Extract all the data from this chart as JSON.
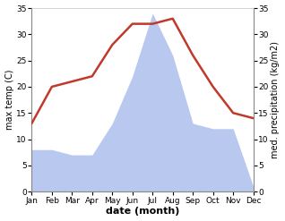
{
  "months": [
    "Jan",
    "Feb",
    "Mar",
    "Apr",
    "May",
    "Jun",
    "Jul",
    "Aug",
    "Sep",
    "Oct",
    "Nov",
    "Dec"
  ],
  "temperature": [
    13,
    20,
    21,
    22,
    28,
    32,
    32,
    33,
    26,
    20,
    15,
    14
  ],
  "precipitation": [
    8,
    8,
    7,
    7,
    13,
    22,
    34,
    26,
    13,
    12,
    12,
    1
  ],
  "temp_color": "#c0392b",
  "precip_color": "#b8c8ee",
  "ylim_left": [
    0,
    35
  ],
  "ylim_right": [
    0,
    35
  ],
  "yticks": [
    0,
    5,
    10,
    15,
    20,
    25,
    30,
    35
  ],
  "xlabel": "date (month)",
  "ylabel_left": "max temp (C)",
  "ylabel_right": "med. precipitation (kg/m2)",
  "bg_color": "#ffffff",
  "xlabel_fontsize": 8,
  "ylabel_fontsize": 7,
  "tick_fontsize": 6.5,
  "line_width": 1.8
}
